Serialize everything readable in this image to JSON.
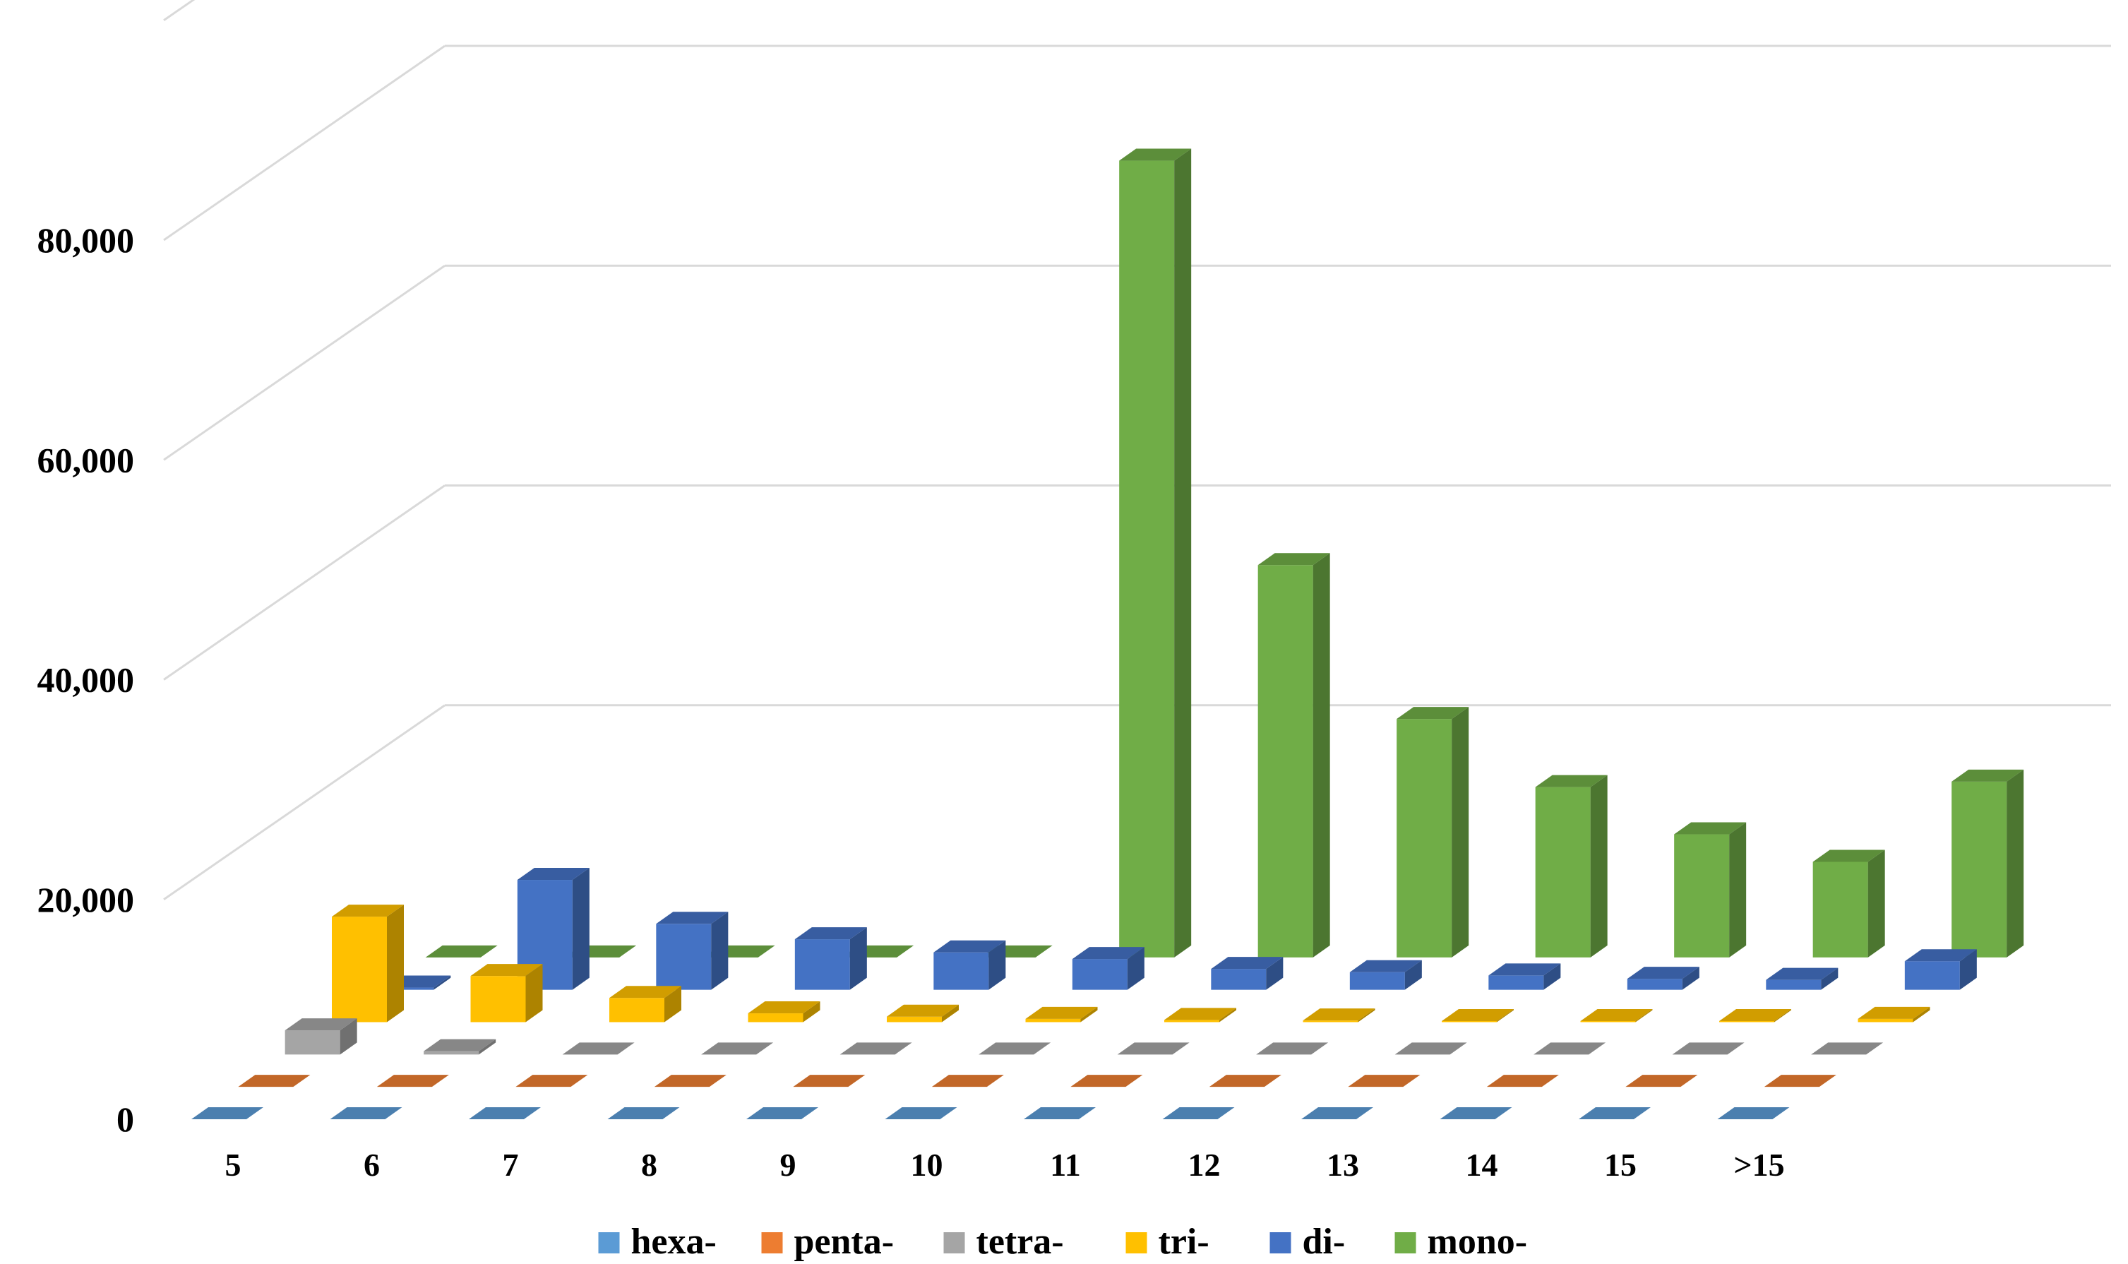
{
  "chart_data": {
    "type": "bar",
    "variant": "3d-column",
    "categories": [
      "5",
      "6",
      "7",
      "8",
      "9",
      "10",
      "11",
      "12",
      "13",
      "14",
      "15",
      ">15"
    ],
    "series": [
      {
        "name": "hexa-",
        "color": "#5B9BD5",
        "values": [
          0,
          0,
          0,
          0,
          0,
          0,
          0,
          0,
          0,
          0,
          0,
          0
        ]
      },
      {
        "name": "penta-",
        "color": "#ED7D31",
        "values": [
          0,
          0,
          0,
          0,
          0,
          0,
          0,
          0,
          0,
          0,
          0,
          0
        ]
      },
      {
        "name": "tetra-",
        "color": "#A5A5A5",
        "values": [
          2200,
          300,
          0,
          0,
          0,
          0,
          0,
          0,
          0,
          0,
          0,
          0
        ]
      },
      {
        "name": "tri-",
        "color": "#FFC000",
        "values": [
          9600,
          4200,
          2200,
          800,
          500,
          300,
          200,
          150,
          100,
          100,
          100,
          300
        ]
      },
      {
        "name": "di-",
        "color": "#4472C4",
        "values": [
          200,
          10000,
          6000,
          4600,
          3400,
          2800,
          1900,
          1600,
          1300,
          1000,
          900,
          2600
        ]
      },
      {
        "name": "mono-",
        "color": "#70AD47",
        "values": [
          0,
          0,
          0,
          0,
          0,
          72500,
          35700,
          21700,
          15500,
          11200,
          8700,
          16000
        ]
      }
    ],
    "yticks": [
      "0",
      "20,000",
      "40,000",
      "60,000",
      "80,000"
    ],
    "ylim": [
      0,
      100000
    ],
    "grid": true,
    "legend_position": "bottom"
  }
}
